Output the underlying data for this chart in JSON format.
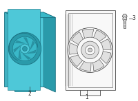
{
  "bg_color": "#ffffff",
  "blue_fill": "#4ec8d8",
  "blue_dark": "#2a9aaa",
  "blue_stroke": "#1a7080",
  "blue_mid": "#3ab8c8",
  "white_fill": "#f8f8f8",
  "white_stroke": "#444444",
  "white_shade": "#e0e0e0",
  "bolt_fill": "#dddddd",
  "bolt_stroke": "#555555",
  "label_color": "#333333",
  "label_fontsize": 5.5
}
